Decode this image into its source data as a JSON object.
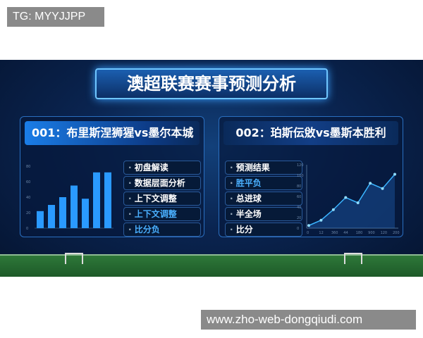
{
  "watermark_top": "TG: MYYJJPP",
  "watermark_bottom": "www.zho-web-dongqiudi.com",
  "title": "澳超联赛赛事预测分析",
  "match1": {
    "header": "001：布里斯涅狮猩vs墨尔本城",
    "options": [
      "初盘解读",
      "数据层面分析",
      "上下文调整",
      "上下文调整",
      "比分负"
    ],
    "highlighted": [
      3,
      4
    ]
  },
  "match2": {
    "header": "002：珀斯伝敓vs墨斯本胜利",
    "options": [
      "预测结果",
      "胜平负",
      "总进球",
      "半全场",
      "比分"
    ],
    "highlighted": [
      1
    ]
  },
  "chart_data": [
    {
      "type": "bar",
      "values": [
        22,
        30,
        40,
        55,
        38,
        72,
        72
      ],
      "ylim": [
        0,
        80
      ],
      "yticks": [
        0,
        20,
        40,
        60,
        80
      ],
      "color": "#2a9aff"
    },
    {
      "type": "line",
      "x": [
        "0",
        "12",
        "360",
        "44",
        "180",
        "900",
        "120",
        "200"
      ],
      "values": [
        5,
        15,
        35,
        58,
        48,
        85,
        75,
        102
      ],
      "ylim": [
        0,
        120
      ],
      "yticks": [
        0,
        20,
        40,
        60,
        80,
        100,
        120
      ],
      "color": "#3ab4ff"
    }
  ]
}
